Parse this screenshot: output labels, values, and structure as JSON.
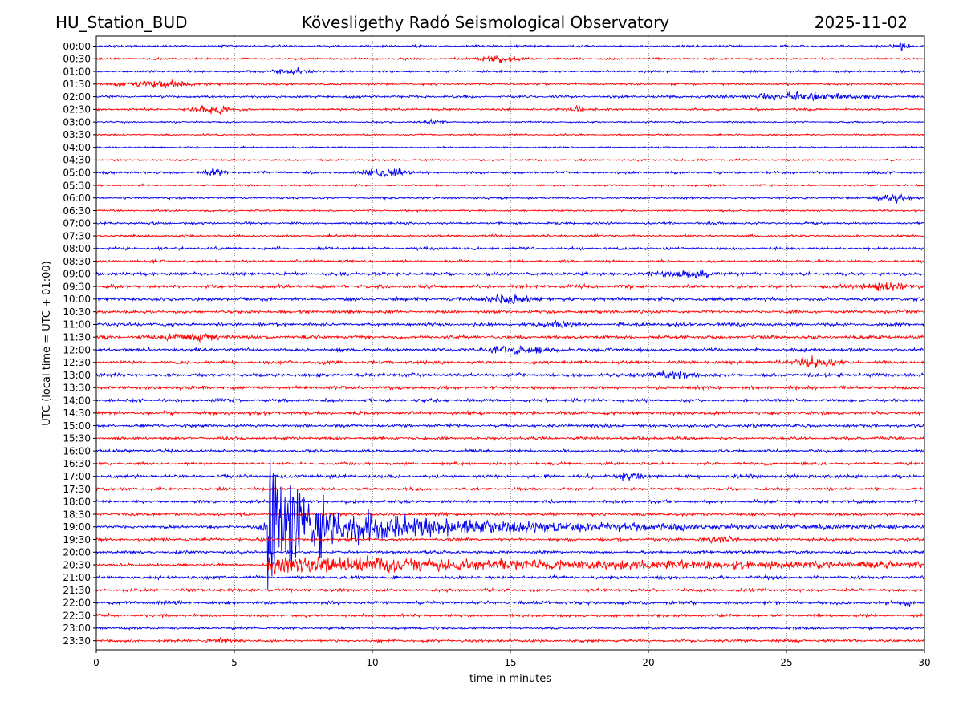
{
  "chart_data": {
    "type": "line",
    "station": "HU_Station_BUD",
    "title": "Köveslig­ethy Radó Seismological Observatory",
    "date": "2025-11-02",
    "xlabel": "time in minutes",
    "ylabel": "UTC (local time = UTC + 01:00)",
    "xlim": [
      0,
      30
    ],
    "x_ticks": [
      0,
      5,
      10,
      15,
      20,
      25,
      30
    ],
    "grid": "vertical dotted",
    "colors": {
      "even_rows": "#0000ee",
      "odd_rows": "#ff0000",
      "frame": "#000000"
    },
    "rows": [
      "00:00",
      "00:30",
      "01:00",
      "01:30",
      "02:00",
      "02:30",
      "03:00",
      "03:30",
      "04:00",
      "04:30",
      "05:00",
      "05:30",
      "06:00",
      "06:30",
      "07:00",
      "07:30",
      "08:00",
      "08:30",
      "09:00",
      "09:30",
      "10:00",
      "10:30",
      "11:00",
      "11:30",
      "12:00",
      "12:30",
      "13:00",
      "13:30",
      "14:00",
      "14:30",
      "15:00",
      "15:30",
      "16:00",
      "16:30",
      "17:00",
      "17:30",
      "18:00",
      "18:30",
      "19:00",
      "19:30",
      "20:00",
      "20:30",
      "21:00",
      "21:30",
      "22:00",
      "22:30",
      "23:00",
      "23:30"
    ],
    "noise_level": [
      0.1,
      0.09,
      0.09,
      0.09,
      0.1,
      0.09,
      0.07,
      0.07,
      0.07,
      0.08,
      0.11,
      0.08,
      0.09,
      0.08,
      0.1,
      0.1,
      0.12,
      0.11,
      0.14,
      0.15,
      0.15,
      0.14,
      0.14,
      0.15,
      0.14,
      0.14,
      0.16,
      0.14,
      0.14,
      0.14,
      0.13,
      0.12,
      0.13,
      0.12,
      0.15,
      0.12,
      0.13,
      0.13,
      0.13,
      0.12,
      0.13,
      0.12,
      0.14,
      0.13,
      0.14,
      0.12,
      0.11,
      0.12
    ],
    "events": [
      {
        "row": "00:00",
        "start_min": 28.9,
        "duration_min": 0.6,
        "amplitude": 0.35
      },
      {
        "row": "00:30",
        "start_min": 13.5,
        "duration_min": 2.0,
        "amplitude": 0.35
      },
      {
        "row": "01:00",
        "start_min": 6.0,
        "duration_min": 2.0,
        "amplitude": 0.3
      },
      {
        "row": "01:30",
        "start_min": 0.5,
        "duration_min": 3.5,
        "amplitude": 0.3
      },
      {
        "row": "02:00",
        "start_min": 22.5,
        "duration_min": 6.0,
        "amplitude": 0.35
      },
      {
        "row": "02:30",
        "start_min": 3.5,
        "duration_min": 1.5,
        "amplitude": 0.55
      },
      {
        "row": "02:30",
        "start_min": 17.0,
        "duration_min": 0.8,
        "amplitude": 0.3
      },
      {
        "row": "03:00",
        "start_min": 11.7,
        "duration_min": 1.0,
        "amplitude": 0.25
      },
      {
        "row": "05:00",
        "start_min": 9.5,
        "duration_min": 2.0,
        "amplitude": 0.45
      },
      {
        "row": "05:00",
        "start_min": 3.8,
        "duration_min": 1.0,
        "amplitude": 0.3
      },
      {
        "row": "06:00",
        "start_min": 28.0,
        "duration_min": 1.8,
        "amplitude": 0.35
      },
      {
        "row": "09:00",
        "start_min": 20.0,
        "duration_min": 3.0,
        "amplitude": 0.35
      },
      {
        "row": "09:30",
        "start_min": 27.0,
        "duration_min": 3.0,
        "amplitude": 0.3
      },
      {
        "row": "10:00",
        "start_min": 13.5,
        "duration_min": 3.0,
        "amplitude": 0.35
      },
      {
        "row": "11:00",
        "start_min": 16.0,
        "duration_min": 1.5,
        "amplitude": 0.3
      },
      {
        "row": "11:30",
        "start_min": 1.5,
        "duration_min": 4.0,
        "amplitude": 0.3
      },
      {
        "row": "12:00",
        "start_min": 13.5,
        "duration_min": 3.5,
        "amplitude": 0.3
      },
      {
        "row": "12:30",
        "start_min": 25.0,
        "duration_min": 2.0,
        "amplitude": 0.55
      },
      {
        "row": "13:00",
        "start_min": 19.5,
        "duration_min": 2.5,
        "amplitude": 0.35
      },
      {
        "row": "17:00",
        "start_min": 18.5,
        "duration_min": 1.5,
        "amplitude": 0.35
      },
      {
        "row": "19:00",
        "start_min": 5.5,
        "duration_min": 1.2,
        "amplitude": 0.3
      },
      {
        "row": "19:30",
        "start_min": 22.0,
        "duration_min": 1.5,
        "amplitude": 0.3
      },
      {
        "row": "22:00",
        "start_min": 29.2,
        "duration_min": 0.4,
        "amplitude": 0.4
      },
      {
        "row": "23:30",
        "start_min": 4.0,
        "duration_min": 1.0,
        "amplitude": 0.3
      }
    ],
    "earthquake": {
      "onset_min": 6.2,
      "rows": [
        {
          "row": "19:00",
          "onset_min": 6.2,
          "amplitude": 9.5,
          "decay_min": 1.2,
          "coda_amplitude": 1.6,
          "coda_decay_min": 8.0,
          "clip_rows": [
            9.5,
            9.5
          ]
        },
        {
          "row": "20:30",
          "onset_min": 6.2,
          "amplitude": 0.4,
          "decay_min": 15.0,
          "coda_amplitude": 0.5,
          "coda_decay_min": 20.0
        }
      ]
    }
  }
}
